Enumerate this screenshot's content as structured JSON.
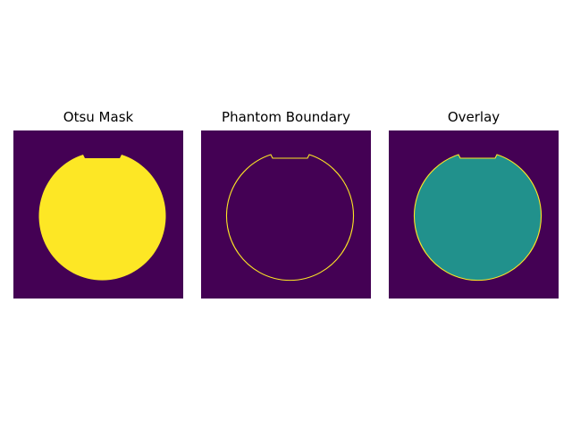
{
  "figure": {
    "panels": [
      {
        "title": "Otsu Mask"
      },
      {
        "title": "Phantom Boundary"
      },
      {
        "title": "Overlay"
      }
    ]
  },
  "colors": {
    "background_purple": "#440154",
    "mask_yellow": "#fde725",
    "overlay_teal": "#21918c"
  }
}
